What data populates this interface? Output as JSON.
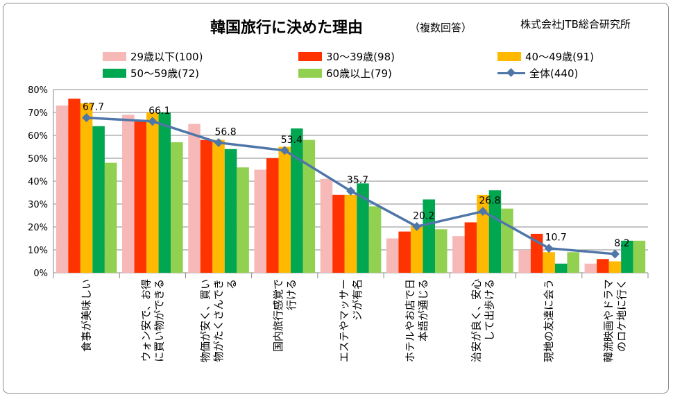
{
  "title": "韓国旅行に決めた理由",
  "subtitle": "（複数回答）",
  "source": "株式会社JTB総合研究所",
  "chart_data": {
    "type": "bar",
    "title": "韓国旅行に決めた理由",
    "ylim": [
      0,
      80
    ],
    "y_ticks": [
      "0%",
      "10%",
      "20%",
      "30%",
      "40%",
      "50%",
      "60%",
      "70%",
      "80%"
    ],
    "legend_position": "top",
    "categories": [
      [
        "食事が美味しい"
      ],
      [
        "ウォン安で、お得",
        "に買い物ができる"
      ],
      [
        "物価が安く、買い",
        "物がたくさんでき",
        "る"
      ],
      [
        "国内旅行感覚で",
        "行ける"
      ],
      [
        "エステやマッサー",
        "ジが有名"
      ],
      [
        "ホテルやお店で日",
        "本語が通じる"
      ],
      [
        "治安が良く、安心",
        "して出歩ける"
      ],
      [
        "現地の友達に会う"
      ],
      [
        "韓流映画やドラマ",
        "のロケ地に行く"
      ]
    ],
    "series": [
      {
        "name": "29歳以下(100)",
        "color": "#f7b8b8",
        "values": [
          73,
          69,
          65,
          45,
          41,
          15,
          16,
          10,
          4
        ]
      },
      {
        "name": "30～39歳(98)",
        "color": "#ff3300",
        "values": [
          76,
          66,
          58,
          50,
          34,
          18,
          22,
          17,
          6
        ]
      },
      {
        "name": "40～49歳(91)",
        "color": "#ffb900",
        "values": [
          74,
          70,
          58,
          55,
          34,
          21,
          34,
          9,
          5
        ]
      },
      {
        "name": "50～59歳(72)",
        "color": "#00a650",
        "values": [
          64,
          70,
          54,
          63,
          39,
          32,
          36,
          4,
          14
        ]
      },
      {
        "name": "60歳以上(79)",
        "color": "#92d050",
        "values": [
          48,
          57,
          46,
          58,
          29,
          19,
          28,
          9,
          14
        ]
      }
    ],
    "line": {
      "name": "全体(440)",
      "color": "#4f76a8",
      "values": [
        67.7,
        66.1,
        56.8,
        53.4,
        35.7,
        20.2,
        26.8,
        10.7,
        8.2
      ],
      "labels": [
        "67.7",
        "66.1",
        "56.8",
        "53.4",
        "35.7",
        "20.2",
        "26.8",
        "10.7",
        "8.2"
      ]
    }
  }
}
